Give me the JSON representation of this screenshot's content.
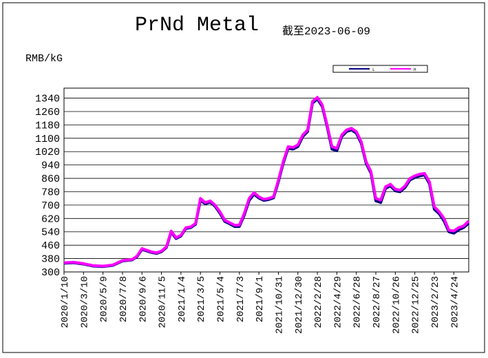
{
  "chart_data": {
    "type": "line",
    "title": "PrNd Metal",
    "subtitle": "截至2023-06-09",
    "y_label": "RMB/kG",
    "x": [
      "2020/1/10",
      "2020/2/9",
      "2020/3/10",
      "2020/4/9",
      "2020/5/9",
      "2020/6/8",
      "2020/7/8",
      "2020/8/7",
      "2020/8/22",
      "2020/9/6",
      "2020/10/6",
      "2020/10/21",
      "2020/11/5",
      "2020/11/20",
      "2020/12/5",
      "2020/12/20",
      "2021/1/4",
      "2021/1/19",
      "2021/2/3",
      "2021/2/18",
      "2021/3/5",
      "2021/3/20",
      "2021/4/4",
      "2021/4/19",
      "2021/5/4",
      "2021/5/19",
      "2021/6/3",
      "2021/6/18",
      "2021/7/3",
      "2021/7/18",
      "2021/8/2",
      "2021/8/17",
      "2021/9/1",
      "2021/9/16",
      "2021/10/1",
      "2021/10/16",
      "2021/10/31",
      "2021/11/15",
      "2021/11/30",
      "2021/12/15",
      "2021/12/30",
      "2022/1/14",
      "2022/1/29",
      "2022/2/13",
      "2022/2/28",
      "2022/3/15",
      "2022/3/30",
      "2022/4/14",
      "2022/4/29",
      "2022/5/14",
      "2022/5/29",
      "2022/6/13",
      "2022/6/28",
      "2022/7/13",
      "2022/7/28",
      "2022/8/12",
      "2022/8/27",
      "2022/9/11",
      "2022/9/26",
      "2022/10/11",
      "2022/10/26",
      "2022/11/10",
      "2022/11/25",
      "2022/12/10",
      "2022/12/25",
      "2023/1/9",
      "2023/1/24",
      "2023/2/8",
      "2023/2/23",
      "2023/3/10",
      "2023/3/25",
      "2023/4/9",
      "2023/4/24",
      "2023/5/9",
      "2023/5/24",
      "2023/6/9"
    ],
    "series": [
      {
        "name": "L",
        "color": "#000080",
        "values": [
          352,
          355,
          347,
          335,
          332,
          339,
          365,
          372,
          392,
          435,
          416,
          411,
          421,
          446,
          538,
          500,
          515,
          560,
          565,
          585,
          728,
          708,
          718,
          693,
          652,
          602,
          588,
          572,
          572,
          640,
          728,
          765,
          742,
          728,
          733,
          743,
          840,
          950,
          1040,
          1035,
          1050,
          1110,
          1140,
          1310,
          1335,
          1290,
          1170,
          1035,
          1025,
          1110,
          1140,
          1150,
          1130,
          1070,
          950,
          890,
          725,
          715,
          800,
          815,
          785,
          780,
          805,
          850,
          865,
          875,
          880,
          828,
          675,
          648,
          605,
          540,
          532,
          552,
          565,
          592
        ]
      },
      {
        "name": "H",
        "color": "#ff00ff",
        "values": [
          355,
          358,
          350,
          338,
          335,
          342,
          368,
          375,
          395,
          440,
          420,
          415,
          425,
          450,
          545,
          505,
          520,
          565,
          570,
          590,
          740,
          715,
          725,
          700,
          660,
          610,
          595,
          580,
          580,
          650,
          740,
          775,
          750,
          735,
          740,
          750,
          850,
          960,
          1050,
          1045,
          1060,
          1120,
          1150,
          1320,
          1345,
          1300,
          1180,
          1050,
          1040,
          1120,
          1150,
          1160,
          1140,
          1080,
          960,
          900,
          740,
          730,
          810,
          825,
          795,
          790,
          815,
          860,
          875,
          885,
          890,
          840,
          690,
          660,
          620,
          550,
          545,
          565,
          575,
          605
        ]
      }
    ],
    "xlim": [
      "2020/1/10",
      "2023/6/9"
    ],
    "xticks": [
      "2020/1/10",
      "2020/3/10",
      "2020/5/9",
      "2020/7/8",
      "2020/9/6",
      "2020/11/5",
      "2021/1/4",
      "2021/3/5",
      "2021/5/4",
      "2021/7/3",
      "2021/9/1",
      "2021/10/31",
      "2021/12/30",
      "2022/2/28",
      "2022/4/29",
      "2022/6/28",
      "2022/8/27",
      "2022/10/26",
      "2022/12/25",
      "2023/2/23",
      "2023/4/24"
    ],
    "ylim": [
      300,
      1400
    ],
    "yticks": [
      300,
      380,
      460,
      540,
      620,
      700,
      780,
      860,
      940,
      1020,
      1100,
      1180,
      1260,
      1340
    ],
    "grid": true,
    "legend": "top-right"
  }
}
